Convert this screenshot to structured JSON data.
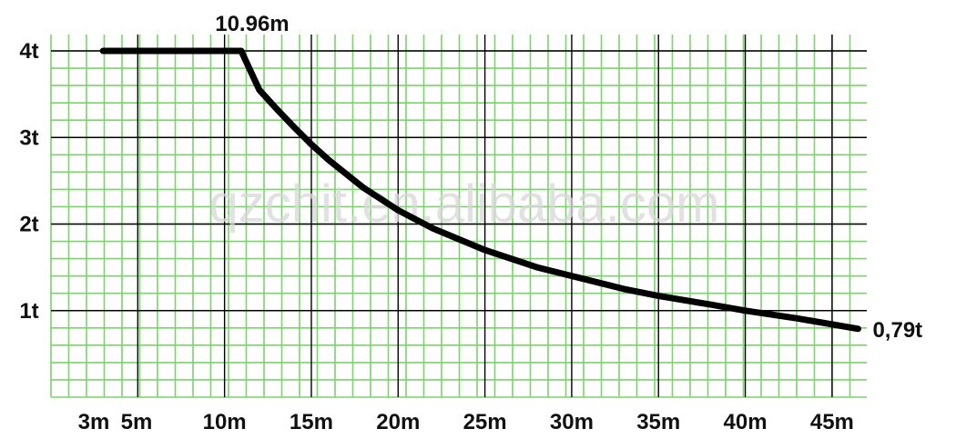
{
  "chart_data": {
    "type": "line",
    "title": "",
    "xlabel": "",
    "ylabel": "",
    "xlim": [
      0,
      47
    ],
    "ylim": [
      0,
      4
    ],
    "grid": true,
    "x_ticks": [
      {
        "value": 3,
        "label": "3m"
      },
      {
        "value": 5,
        "label": "5m"
      },
      {
        "value": 10,
        "label": "10m"
      },
      {
        "value": 15,
        "label": "15m"
      },
      {
        "value": 20,
        "label": "20m"
      },
      {
        "value": 25,
        "label": "25m"
      },
      {
        "value": 30,
        "label": "30m"
      },
      {
        "value": 35,
        "label": "35m"
      },
      {
        "value": 40,
        "label": "40m"
      },
      {
        "value": 45,
        "label": "45m"
      }
    ],
    "y_ticks": [
      {
        "value": 1,
        "label": "1t"
      },
      {
        "value": 2,
        "label": "2t"
      },
      {
        "value": 3,
        "label": "3t"
      },
      {
        "value": 4,
        "label": "4t"
      }
    ],
    "series": [
      {
        "x": [
          3,
          10.96,
          12,
          13,
          14,
          15,
          16,
          17,
          18,
          20,
          22,
          25,
          28,
          30,
          33,
          35,
          38,
          40,
          43,
          46.5
        ],
        "y": [
          4,
          4,
          3.55,
          3.33,
          3.12,
          2.92,
          2.74,
          2.58,
          2.42,
          2.16,
          1.95,
          1.7,
          1.5,
          1.4,
          1.25,
          1.17,
          1.07,
          1.0,
          0.91,
          0.79
        ]
      }
    ],
    "annotations": [
      {
        "text": "10.96m",
        "x": 10.96,
        "y": 4
      },
      {
        "text": "0,79t",
        "x": 46.5,
        "y": 0.79
      }
    ],
    "watermark": "qzchit.en.alibaba.com",
    "colors": {
      "grid_minor": "#7bd36b",
      "grid_major": "#000000",
      "curve": "#000000",
      "background": "#ffffff"
    }
  }
}
